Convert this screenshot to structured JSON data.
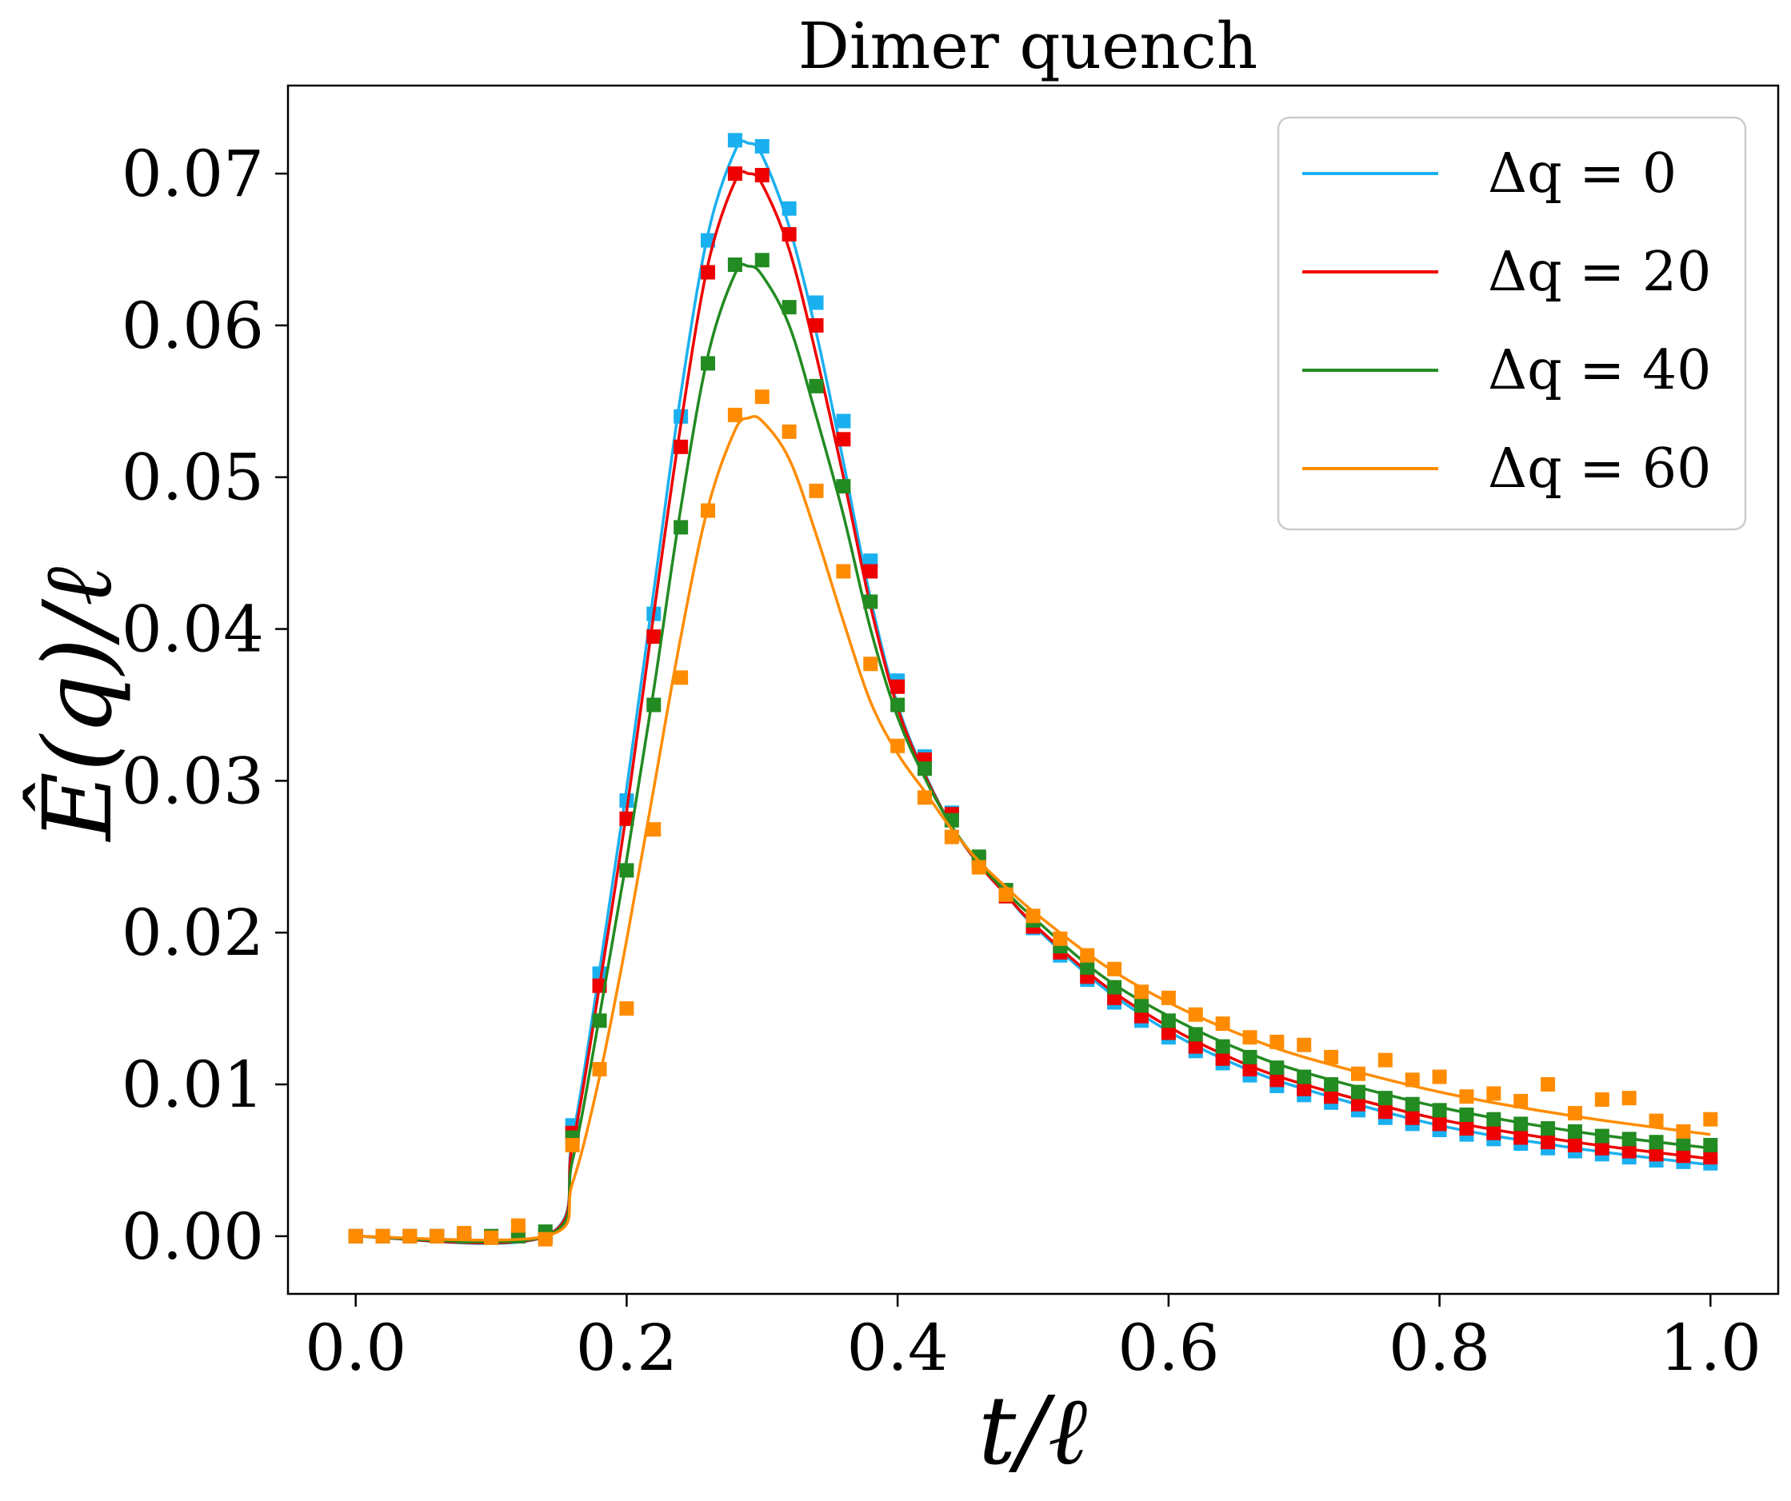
{
  "chart_data": {
    "type": "line",
    "title": "Dimer quench",
    "xlabel": "t/ℓ",
    "ylabel": "Ê(q)/ℓ",
    "xlim": [
      -0.05,
      1.05
    ],
    "ylim": [
      -0.0038,
      0.0758
    ],
    "xticks": [
      "0.0",
      "0.2",
      "0.4",
      "0.6",
      "0.8",
      "1.0"
    ],
    "yticks": [
      "0.00",
      "0.01",
      "0.02",
      "0.03",
      "0.04",
      "0.05",
      "0.06",
      "0.07"
    ],
    "grid": false,
    "legend_position": "top-right",
    "series": [
      {
        "name": "Δq = 0",
        "color": "#1ab0f0",
        "line_x": [
          0.0,
          0.14,
          0.16,
          0.18,
          0.2,
          0.22,
          0.24,
          0.26,
          0.28,
          0.29,
          0.3,
          0.32,
          0.34,
          0.36,
          0.38,
          0.4,
          0.42,
          0.44,
          0.46,
          0.48,
          0.5,
          0.55,
          0.6,
          0.65,
          0.7,
          0.8,
          0.9,
          1.0
        ],
        "line_y": [
          0.0,
          0.0,
          0.0065,
          0.0175,
          0.0295,
          0.0425,
          0.0555,
          0.066,
          0.0715,
          0.072,
          0.0712,
          0.0665,
          0.0595,
          0.051,
          0.042,
          0.035,
          0.0305,
          0.027,
          0.0245,
          0.0225,
          0.0205,
          0.0165,
          0.0135,
          0.0113,
          0.0097,
          0.0073,
          0.0058,
          0.0047
        ],
        "marker_x": [
          0.0,
          0.02,
          0.04,
          0.06,
          0.08,
          0.1,
          0.12,
          0.14,
          0.16,
          0.18,
          0.2,
          0.22,
          0.24,
          0.26,
          0.28,
          0.3,
          0.32,
          0.34,
          0.36,
          0.38,
          0.4,
          0.42,
          0.44,
          0.46,
          0.48,
          0.5,
          0.52,
          0.54,
          0.56,
          0.58,
          0.6,
          0.62,
          0.64,
          0.66,
          0.68,
          0.7,
          0.72,
          0.74,
          0.76,
          0.78,
          0.8,
          0.82,
          0.84,
          0.86,
          0.88,
          0.9,
          0.92,
          0.94,
          0.96,
          0.98,
          1.0
        ],
        "marker_y": [
          0.0,
          0.0,
          0.0,
          0.0,
          0.0,
          0.0,
          0.0,
          0.0,
          0.0073,
          0.0173,
          0.0287,
          0.041,
          0.054,
          0.0656,
          0.0722,
          0.0718,
          0.0677,
          0.0615,
          0.0537,
          0.0445,
          0.0366,
          0.0316,
          0.0279,
          0.0248,
          0.0224,
          0.0203,
          0.0185,
          0.0169,
          0.0154,
          0.0142,
          0.0131,
          0.0122,
          0.0114,
          0.0106,
          0.0099,
          0.0093,
          0.0088,
          0.0083,
          0.0078,
          0.0074,
          0.007,
          0.0067,
          0.0064,
          0.0061,
          0.0058,
          0.0056,
          0.0054,
          0.0052,
          0.005,
          0.0049,
          0.0048
        ]
      },
      {
        "name": "Δq = 20",
        "color": "#ee0000",
        "line_x": [
          0.0,
          0.14,
          0.16,
          0.18,
          0.2,
          0.22,
          0.24,
          0.26,
          0.28,
          0.29,
          0.3,
          0.32,
          0.34,
          0.36,
          0.38,
          0.4,
          0.42,
          0.44,
          0.46,
          0.48,
          0.5,
          0.55,
          0.6,
          0.65,
          0.7,
          0.8,
          0.9,
          1.0
        ],
        "line_y": [
          0.0,
          0.0,
          0.006,
          0.0165,
          0.028,
          0.041,
          0.0535,
          0.064,
          0.0695,
          0.07,
          0.0693,
          0.065,
          0.058,
          0.05,
          0.0415,
          0.0348,
          0.0304,
          0.027,
          0.0245,
          0.0225,
          0.0206,
          0.0167,
          0.0138,
          0.0116,
          0.01,
          0.0077,
          0.0062,
          0.0051
        ],
        "marker_x": [
          0.0,
          0.02,
          0.04,
          0.06,
          0.08,
          0.1,
          0.12,
          0.14,
          0.16,
          0.18,
          0.2,
          0.22,
          0.24,
          0.26,
          0.28,
          0.3,
          0.32,
          0.34,
          0.36,
          0.38,
          0.4,
          0.42,
          0.44,
          0.46,
          0.48,
          0.5,
          0.52,
          0.54,
          0.56,
          0.58,
          0.6,
          0.62,
          0.64,
          0.66,
          0.68,
          0.7,
          0.72,
          0.74,
          0.76,
          0.78,
          0.8,
          0.82,
          0.84,
          0.86,
          0.88,
          0.9,
          0.92,
          0.94,
          0.96,
          0.98,
          1.0
        ],
        "marker_y": [
          0.0,
          0.0,
          0.0,
          0.0,
          0.0,
          0.0,
          0.0,
          0.0,
          0.0068,
          0.0165,
          0.0275,
          0.0395,
          0.052,
          0.0635,
          0.07,
          0.0699,
          0.066,
          0.06,
          0.0525,
          0.0438,
          0.0362,
          0.0314,
          0.0278,
          0.0248,
          0.0224,
          0.0204,
          0.0187,
          0.0171,
          0.0157,
          0.0145,
          0.0134,
          0.0125,
          0.0117,
          0.011,
          0.0103,
          0.0097,
          0.0092,
          0.0087,
          0.0082,
          0.0078,
          0.0074,
          0.0071,
          0.0068,
          0.0065,
          0.0062,
          0.006,
          0.0058,
          0.0056,
          0.0054,
          0.0053,
          0.0052
        ]
      },
      {
        "name": "Δq = 40",
        "color": "#228b22",
        "line_x": [
          0.0,
          0.14,
          0.16,
          0.18,
          0.2,
          0.22,
          0.24,
          0.26,
          0.28,
          0.29,
          0.3,
          0.32,
          0.34,
          0.36,
          0.38,
          0.4,
          0.42,
          0.44,
          0.46,
          0.48,
          0.5,
          0.55,
          0.6,
          0.65,
          0.7,
          0.8,
          0.9,
          1.0
        ],
        "line_y": [
          0.0,
          0.0,
          0.005,
          0.0145,
          0.0248,
          0.036,
          0.048,
          0.058,
          0.0634,
          0.0639,
          0.0633,
          0.06,
          0.054,
          0.0475,
          0.04,
          0.0342,
          0.0302,
          0.027,
          0.0246,
          0.0227,
          0.021,
          0.0172,
          0.0145,
          0.0124,
          0.0108,
          0.0085,
          0.0069,
          0.0058
        ],
        "marker_x": [
          0.0,
          0.02,
          0.04,
          0.06,
          0.08,
          0.1,
          0.12,
          0.14,
          0.16,
          0.18,
          0.2,
          0.22,
          0.24,
          0.26,
          0.28,
          0.3,
          0.32,
          0.34,
          0.36,
          0.38,
          0.4,
          0.42,
          0.44,
          0.46,
          0.48,
          0.5,
          0.52,
          0.54,
          0.56,
          0.58,
          0.6,
          0.62,
          0.64,
          0.66,
          0.68,
          0.7,
          0.72,
          0.74,
          0.76,
          0.78,
          0.8,
          0.82,
          0.84,
          0.86,
          0.88,
          0.9,
          0.92,
          0.94,
          0.96,
          0.98,
          1.0
        ],
        "marker_y": [
          0.0,
          0.0,
          0.0,
          0.0,
          0.0,
          0.0,
          0.0,
          0.0003,
          0.0065,
          0.0142,
          0.0241,
          0.035,
          0.0467,
          0.0575,
          0.064,
          0.0643,
          0.0612,
          0.056,
          0.0494,
          0.0418,
          0.035,
          0.0308,
          0.0274,
          0.025,
          0.0228,
          0.0208,
          0.0191,
          0.0177,
          0.0164,
          0.0152,
          0.0142,
          0.0133,
          0.0125,
          0.0118,
          0.0111,
          0.0105,
          0.01,
          0.0095,
          0.0091,
          0.0087,
          0.0083,
          0.008,
          0.0077,
          0.0074,
          0.0071,
          0.0069,
          0.0066,
          0.0064,
          0.0062,
          0.0061,
          0.006
        ]
      },
      {
        "name": "Δq = 60",
        "color": "#ff8c00",
        "line_x": [
          0.0,
          0.14,
          0.16,
          0.18,
          0.2,
          0.22,
          0.24,
          0.26,
          0.28,
          0.29,
          0.3,
          0.32,
          0.34,
          0.36,
          0.38,
          0.4,
          0.42,
          0.44,
          0.46,
          0.48,
          0.5,
          0.55,
          0.6,
          0.65,
          0.7,
          0.8,
          0.9,
          1.0
        ],
        "line_y": [
          0.0,
          0.0,
          0.0035,
          0.0105,
          0.0195,
          0.0295,
          0.0395,
          0.048,
          0.0531,
          0.0539,
          0.0537,
          0.0512,
          0.0462,
          0.0405,
          0.0352,
          0.0318,
          0.0293,
          0.0268,
          0.0247,
          0.023,
          0.0214,
          0.018,
          0.0154,
          0.0134,
          0.0118,
          0.0095,
          0.0079,
          0.0067
        ],
        "marker_x": [
          0.0,
          0.02,
          0.04,
          0.06,
          0.08,
          0.1,
          0.12,
          0.14,
          0.16,
          0.18,
          0.2,
          0.22,
          0.24,
          0.26,
          0.28,
          0.3,
          0.32,
          0.34,
          0.36,
          0.38,
          0.4,
          0.42,
          0.44,
          0.46,
          0.48,
          0.5,
          0.52,
          0.54,
          0.56,
          0.58,
          0.6,
          0.62,
          0.64,
          0.66,
          0.68,
          0.7,
          0.72,
          0.74,
          0.76,
          0.78,
          0.8,
          0.82,
          0.84,
          0.86,
          0.88,
          0.9,
          0.92,
          0.94,
          0.96,
          0.98,
          1.0
        ],
        "marker_y": [
          0.0,
          0.0,
          0.0,
          0.0,
          0.0002,
          -0.0001,
          0.0007,
          -0.0002,
          0.006,
          0.011,
          0.015,
          0.0268,
          0.0368,
          0.0478,
          0.0541,
          0.0553,
          0.053,
          0.0491,
          0.0438,
          0.0377,
          0.0323,
          0.0289,
          0.0263,
          0.0243,
          0.0225,
          0.0211,
          0.0196,
          0.0185,
          0.0176,
          0.0161,
          0.0157,
          0.0146,
          0.014,
          0.0131,
          0.0128,
          0.0126,
          0.0118,
          0.0107,
          0.0116,
          0.0103,
          0.0105,
          0.0092,
          0.0094,
          0.0089,
          0.01,
          0.0081,
          0.009,
          0.0091,
          0.0076,
          0.0069,
          0.0077
        ]
      }
    ]
  }
}
